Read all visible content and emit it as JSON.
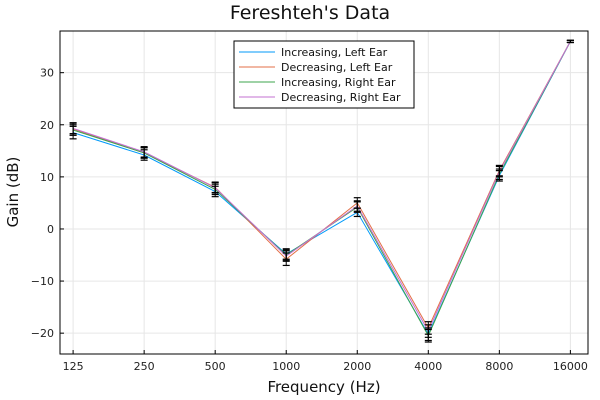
{
  "chart_data": {
    "type": "line",
    "title": "Fereshteh's Data",
    "xlabel": "Frequency (Hz)",
    "ylabel": "Gain (dB)",
    "x_scale": "log2",
    "x": [
      125,
      250,
      500,
      1000,
      2000,
      4000,
      8000,
      16000
    ],
    "x_tick_labels": [
      "125",
      "250",
      "500",
      "1000",
      "2000",
      "4000",
      "8000",
      "16000"
    ],
    "xlim": [
      110,
      19000
    ],
    "ylim": [
      -24,
      38
    ],
    "y_ticks": [
      -20,
      -10,
      0,
      10,
      20,
      30
    ],
    "grid": true,
    "legend_position": "top-center",
    "error_bar_color": "#000000",
    "series": [
      {
        "name": "Increasing, Left Ear",
        "color": "#009AFA",
        "values": [
          18.5,
          14.2,
          7.2,
          -4.8,
          3.2,
          -20.2,
          10.2,
          36.0
        ],
        "error": [
          1.2,
          1.0,
          1.0,
          1.0,
          0.8,
          1.2,
          1.0,
          0.2
        ]
      },
      {
        "name": "Decreasing, Left Ear",
        "color": "#E36F47",
        "values": [
          19.2,
          14.6,
          8.0,
          -5.8,
          5.0,
          -19.0,
          11.2,
          36.0
        ],
        "error": [
          1.2,
          1.0,
          1.0,
          1.2,
          1.0,
          1.2,
          1.0,
          0.2
        ]
      },
      {
        "name": "Increasing, Right Ear",
        "color": "#3EA44E",
        "values": [
          19.0,
          14.6,
          7.6,
          -5.0,
          4.2,
          -20.5,
          10.5,
          36.0
        ],
        "error": [
          1.0,
          1.0,
          1.0,
          1.0,
          1.0,
          1.2,
          1.0,
          0.2
        ]
      },
      {
        "name": "Decreasing, Right Ear",
        "color": "#C371D2",
        "values": [
          19.3,
          14.8,
          7.9,
          -5.2,
          4.4,
          -19.6,
          11.0,
          36.0
        ],
        "error": [
          1.0,
          1.0,
          1.0,
          1.0,
          1.0,
          1.2,
          1.0,
          0.2
        ]
      }
    ]
  }
}
